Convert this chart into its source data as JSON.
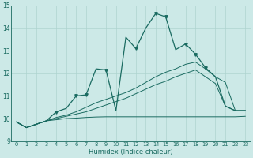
{
  "xlabel": "Humidex (Indice chaleur)",
  "ylabel": "",
  "bg_color": "#cce9e7",
  "line_color": "#1a6b61",
  "grid_color": "#aed4cf",
  "xlim": [
    -0.5,
    23.5
  ],
  "ylim": [
    9,
    15
  ],
  "xticks": [
    0,
    1,
    2,
    3,
    4,
    5,
    6,
    7,
    8,
    9,
    10,
    11,
    12,
    13,
    14,
    15,
    16,
    17,
    18,
    19,
    20,
    21,
    22,
    23
  ],
  "yticks": [
    9,
    10,
    11,
    12,
    13,
    14,
    15
  ],
  "series": [
    [
      9.85,
      9.6,
      9.75,
      9.9,
      10.3,
      10.45,
      11.0,
      11.05,
      12.2,
      12.15,
      10.35,
      13.6,
      13.1,
      14.0,
      14.65,
      14.5,
      13.05,
      13.3,
      12.85,
      12.25,
      11.85,
      10.55,
      10.35,
      10.35
    ],
    [
      9.85,
      9.6,
      9.75,
      9.9,
      9.95,
      10.0,
      10.02,
      10.05,
      10.07,
      10.08,
      10.08,
      10.08,
      10.08,
      10.08,
      10.08,
      10.08,
      10.08,
      10.08,
      10.08,
      10.08,
      10.08,
      10.08,
      10.08,
      10.1
    ],
    [
      9.85,
      9.6,
      9.75,
      9.9,
      10.0,
      10.1,
      10.2,
      10.3,
      10.45,
      10.6,
      10.75,
      10.9,
      11.1,
      11.3,
      11.5,
      11.65,
      11.85,
      12.0,
      12.15,
      11.85,
      11.55,
      10.55,
      10.35,
      10.35
    ],
    [
      9.85,
      9.6,
      9.75,
      9.9,
      10.05,
      10.15,
      10.3,
      10.5,
      10.7,
      10.85,
      11.0,
      11.15,
      11.35,
      11.6,
      11.85,
      12.05,
      12.2,
      12.4,
      12.5,
      12.2,
      11.85,
      11.6,
      10.35,
      10.35
    ]
  ],
  "marker_points": {
    "0": [
      [
        4,
        10.3
      ],
      [
        6,
        11.0
      ],
      [
        7,
        11.05
      ],
      [
        9,
        12.15
      ],
      [
        12,
        13.1
      ],
      [
        14,
        14.65
      ],
      [
        15,
        14.5
      ],
      [
        17,
        13.3
      ],
      [
        18,
        12.85
      ],
      [
        19,
        12.25
      ]
    ]
  }
}
